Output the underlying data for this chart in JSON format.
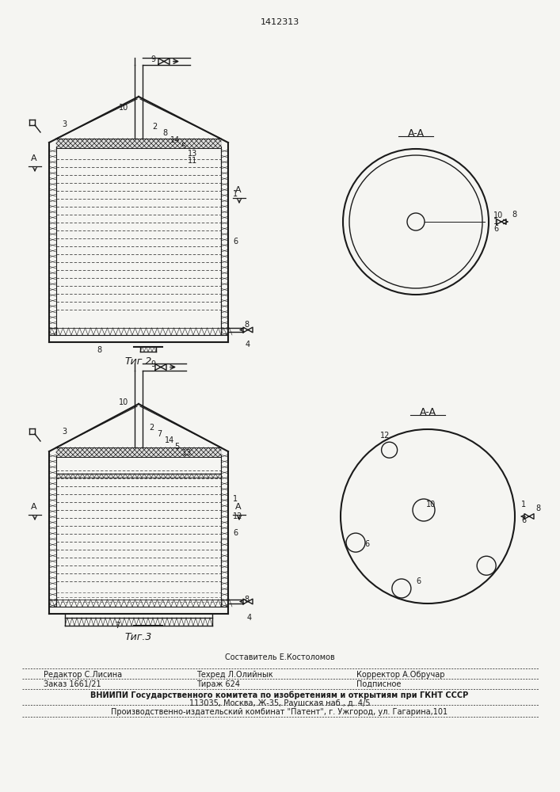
{
  "patent_number": "1412313",
  "bg_color": "#f5f5f2",
  "line_color": "#1a1a1a",
  "fig2_caption": "Τиг.2",
  "fig3_caption": "Τиг.3",
  "footer": {
    "editor": "Редактор С.Лисина",
    "composer": "Составитель Е.Костоломов",
    "techred": "Техред Л.Олийнык",
    "corrector": "Корректор А.Обручар",
    "order": "Заказ 1661/21",
    "tirazh": "Тираж 624",
    "podpisnoe": "Подписное",
    "vniipи": "ВНИИПИ Государственного комитета по изобретениям и открытиям при ГКНТ СССР",
    "address": "113035, Москва, Ж-35, Раушская наб., д. 4/5",
    "publisher": "Производственно-издательский комбинат \"Патент\", г. Ужгород, ул. Гагарина,101"
  }
}
